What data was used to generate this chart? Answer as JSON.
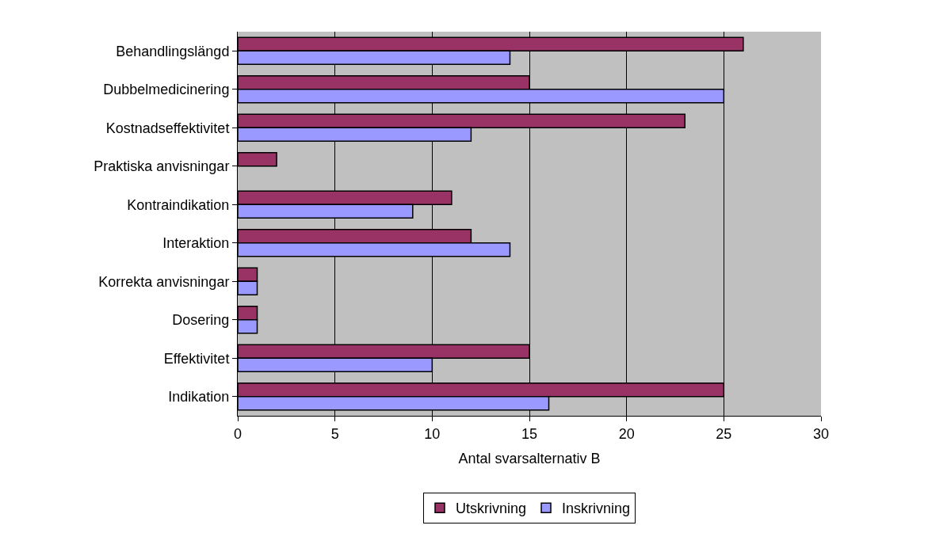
{
  "chart_data": {
    "type": "bar",
    "orientation": "horizontal",
    "xlabel": "Antal svarsalternativ B",
    "categories": [
      "Behandlingslängd",
      "Dubbelmedicinering",
      "Kostnadseffektivitet",
      "Praktiska anvisningar",
      "Kontraindikation",
      "Interaktion",
      "Korrekta anvisningar",
      "Dosering",
      "Effektivitet",
      "Indikation"
    ],
    "series": [
      {
        "name": "Utskrivning",
        "color": "#993366",
        "values": [
          26,
          15,
          23,
          2,
          11,
          12,
          1,
          1,
          15,
          25
        ]
      },
      {
        "name": "Inskrivning",
        "color": "#9999ff",
        "values": [
          14,
          25,
          12,
          null,
          9,
          14,
          1,
          1,
          10,
          16
        ]
      }
    ],
    "xlim": [
      0,
      30
    ],
    "xticks": [
      0,
      5,
      10,
      15,
      20,
      25,
      30
    ],
    "grid": "x",
    "legend": "bottom"
  }
}
